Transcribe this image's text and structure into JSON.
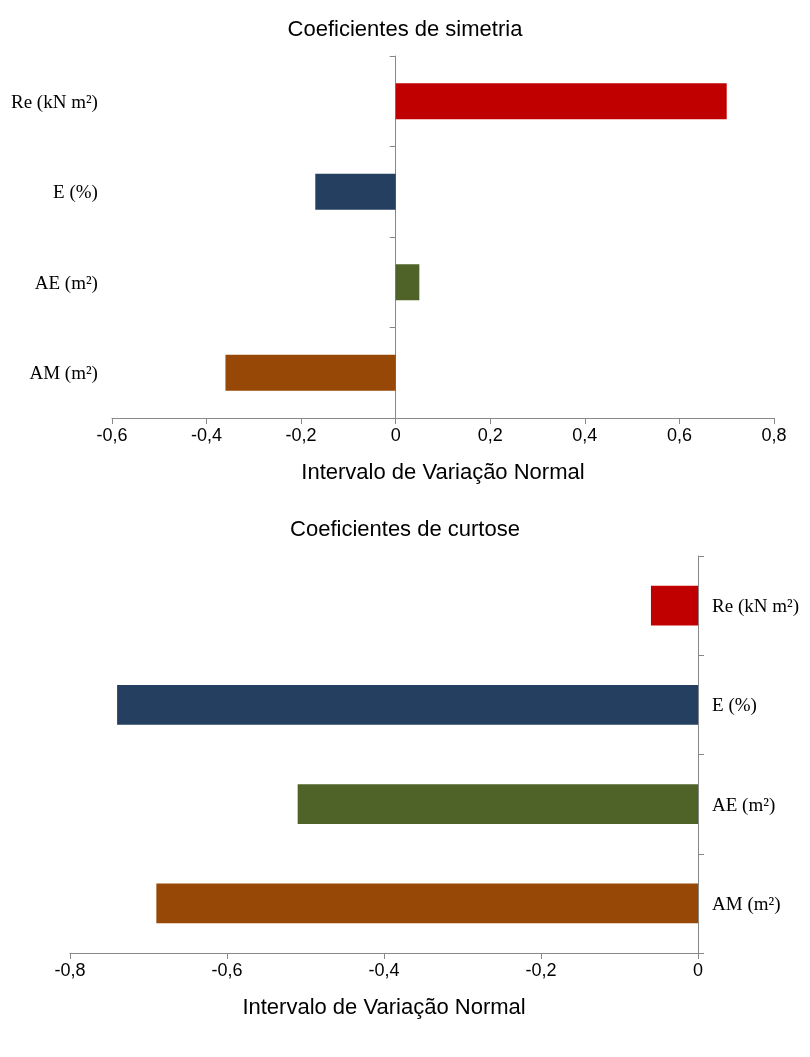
{
  "chart_data": [
    {
      "type": "bar",
      "orientation": "horizontal",
      "title": "Coeficientes de simetria",
      "xlabel": "Intervalo de Variação Normal",
      "categories": [
        "Re (kN m²)",
        "E (%)",
        "AE (m²)",
        "AM (m²)"
      ],
      "values": [
        0.7,
        -0.17,
        0.05,
        -0.36
      ],
      "colors": [
        "#c00000",
        "#243f60",
        "#4f6228",
        "#974806"
      ],
      "xlim": [
        -0.6,
        0.8
      ],
      "xticks": [
        {
          "value": -0.6,
          "label": "-0,6"
        },
        {
          "value": -0.4,
          "label": "-0,4"
        },
        {
          "value": -0.2,
          "label": "-0,2"
        },
        0,
        {
          "value": 0.2,
          "label": "0,2"
        },
        {
          "value": 0.4,
          "label": "0,4"
        },
        {
          "value": 0.6,
          "label": "0,6"
        },
        {
          "value": 0.8,
          "label": "0,8"
        }
      ]
    },
    {
      "type": "bar",
      "orientation": "horizontal",
      "title": "Coeficientes de curtose",
      "xlabel": "Intervalo de Variação Normal",
      "categories": [
        "Re (kN m²)",
        "E (%)",
        "AE (m²)",
        "AM (m²)"
      ],
      "values": [
        -0.06,
        -0.74,
        -0.51,
        -0.69
      ],
      "colors": [
        "#c00000",
        "#243f60",
        "#4f6228",
        "#974806"
      ],
      "xlim": [
        -0.8,
        0
      ],
      "xticks": [
        {
          "value": -0.8,
          "label": "-0,8"
        },
        {
          "value": -0.6,
          "label": "-0,6"
        },
        {
          "value": -0.4,
          "label": "-0,4"
        },
        {
          "value": -0.2,
          "label": "-0,2"
        },
        0
      ]
    }
  ]
}
